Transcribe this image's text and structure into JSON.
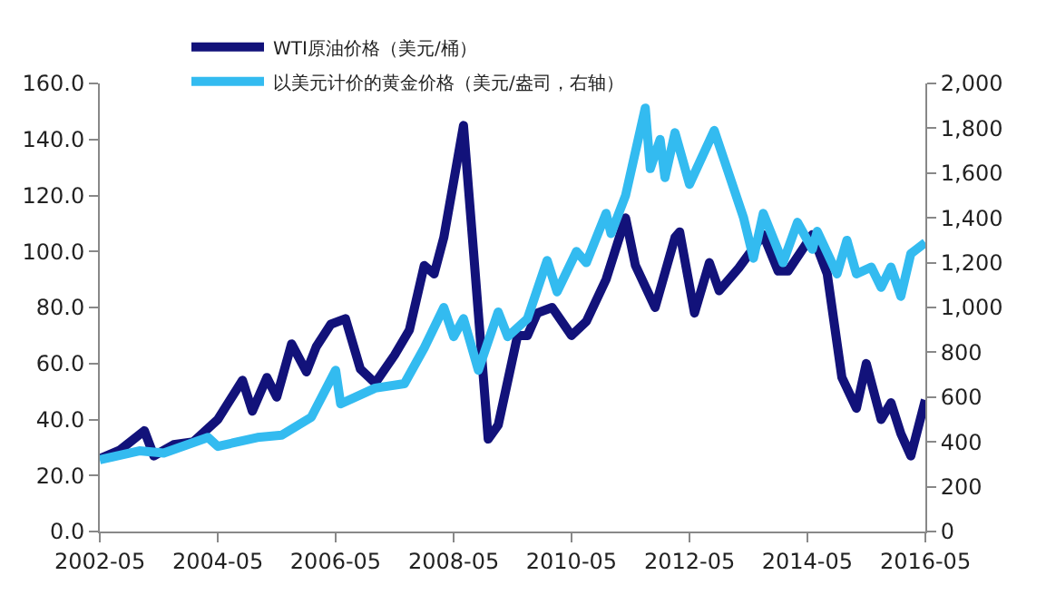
{
  "chart_data": {
    "type": "line",
    "legend": "top",
    "marker": "none",
    "line_style": "solid",
    "xlim": [
      "2002-05",
      "2016-05"
    ],
    "xticks": [
      "2002-05",
      "2004-05",
      "2006-05",
      "2008-05",
      "2010-05",
      "2012-05",
      "2014-05",
      "2016-05"
    ],
    "ylim": [
      0,
      160
    ],
    "yticks": [
      {
        "value": 0,
        "label": "0.0"
      },
      {
        "value": 20,
        "label": "20.0"
      },
      {
        "value": 40,
        "label": "40.0"
      },
      {
        "value": 60,
        "label": "60.0"
      },
      {
        "value": 80,
        "label": "80.0"
      },
      {
        "value": 100,
        "label": "100.0"
      },
      {
        "value": 120,
        "label": "120.0"
      },
      {
        "value": 140,
        "label": "140.0"
      },
      {
        "value": 160,
        "label": "160.0"
      }
    ],
    "y2lim": [
      0,
      2000
    ],
    "y2ticks": [
      0,
      200,
      400,
      600,
      800,
      {
        "value": 1000,
        "label": "1,000"
      },
      {
        "value": 1200,
        "label": "1,200"
      },
      {
        "value": 1400,
        "label": "1,400"
      },
      {
        "value": 1600,
        "label": "1,600"
      },
      {
        "value": 1800,
        "label": "1,800"
      },
      {
        "value": 2000,
        "label": "2,000"
      }
    ],
    "series": [
      {
        "name": "WTI原油价格（美元/桶）",
        "color": "#12127a",
        "x": [
          "2002-05",
          "2002-09",
          "2003-02",
          "2003-04",
          "2003-08",
          "2003-12",
          "2004-05",
          "2004-10",
          "2004-12",
          "2005-03",
          "2005-05",
          "2005-08",
          "2005-11",
          "2006-01",
          "2006-04",
          "2006-07",
          "2006-10",
          "2007-01",
          "2007-05",
          "2007-08",
          "2007-11",
          "2008-01",
          "2008-03",
          "2008-05",
          "2008-07",
          "2008-09",
          "2008-12",
          "2009-02",
          "2009-06",
          "2009-08",
          "2009-10",
          "2010-01",
          "2010-05",
          "2010-08",
          "2010-12",
          "2011-04",
          "2011-06",
          "2011-10",
          "2012-02",
          "2012-03",
          "2012-06",
          "2012-09",
          "2012-11",
          "2013-03",
          "2013-08",
          "2013-11",
          "2014-01",
          "2014-06",
          "2014-09",
          "2014-12",
          "2015-03",
          "2015-05",
          "2015-08",
          "2015-10",
          "2015-12",
          "2016-02",
          "2016-05"
        ],
        "values": [
          26,
          29,
          36,
          27,
          31,
          32,
          40,
          54,
          43,
          55,
          48,
          67,
          57,
          66,
          74,
          76,
          58,
          53,
          63,
          72,
          95,
          92,
          105,
          125,
          145,
          100,
          33,
          38,
          70,
          70,
          78,
          80,
          70,
          75,
          90,
          112,
          95,
          80,
          105,
          107,
          78,
          96,
          86,
          94,
          106,
          93,
          93,
          106,
          92,
          55,
          44,
          60,
          40,
          46,
          35,
          27,
          47
        ]
      },
      {
        "name": "以美元计价的黄金价格（美元/盎司，右轴）",
        "color": "#33bbf0",
        "axis": "y2",
        "x": [
          "2002-05",
          "2003-01",
          "2003-06",
          "2004-03",
          "2004-05",
          "2005-01",
          "2005-06",
          "2005-12",
          "2006-05",
          "2006-06",
          "2007-01",
          "2007-07",
          "2007-11",
          "2008-03",
          "2008-05",
          "2008-07",
          "2008-10",
          "2009-02",
          "2009-04",
          "2009-08",
          "2009-12",
          "2010-02",
          "2010-06",
          "2010-08",
          "2010-12",
          "2011-01",
          "2011-04",
          "2011-08",
          "2011-09",
          "2011-11",
          "2011-12",
          "2012-02",
          "2012-05",
          "2012-10",
          "2012-12",
          "2013-04",
          "2013-06",
          "2013-08",
          "2013-12",
          "2014-03",
          "2014-06",
          "2014-07",
          "2014-11",
          "2015-01",
          "2015-03",
          "2015-06",
          "2015-08",
          "2015-10",
          "2015-12",
          "2016-02",
          "2016-05"
        ],
        "values": [
          320,
          360,
          350,
          420,
          380,
          420,
          430,
          510,
          720,
          570,
          640,
          660,
          820,
          1000,
          870,
          950,
          720,
          980,
          870,
          950,
          1210,
          1070,
          1250,
          1200,
          1420,
          1330,
          1500,
          1890,
          1620,
          1750,
          1580,
          1780,
          1550,
          1790,
          1660,
          1400,
          1220,
          1420,
          1200,
          1380,
          1260,
          1340,
          1150,
          1300,
          1150,
          1180,
          1090,
          1180,
          1050,
          1240,
          1290
        ]
      }
    ]
  }
}
